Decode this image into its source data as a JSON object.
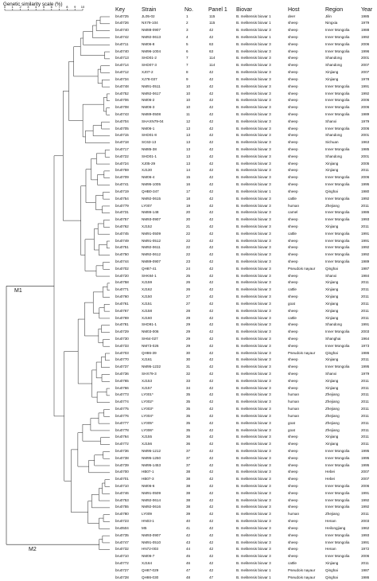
{
  "scale": {
    "title": "Genetic similarity scale (%)",
    "ticks": [
      "0",
      "1",
      "2",
      "3",
      "4",
      "5",
      "6",
      "7",
      "8",
      "9",
      "10"
    ]
  },
  "columns": {
    "key": "Key",
    "strain": "Strain",
    "no": "No.",
    "panel": "Panel 1",
    "biovar": "Biovar",
    "host": "Host",
    "region": "Region",
    "year": "Year"
  },
  "clusters": [
    {
      "label": "M1",
      "first_row": 0,
      "last_row": 73
    },
    {
      "label": "M2",
      "first_row": 74,
      "last_row": 76
    }
  ],
  "rows": [
    [
      "bru0725",
      "JL05-02",
      "1",
      "115",
      "B. melitensis biovar 1",
      "deer",
      "Jilin",
      "1985"
    ],
    [
      "bru0726",
      "NX79-104",
      "2",
      "115",
      "B. melitensis biovar 1",
      "sheep",
      "Ningxia",
      "1979"
    ],
    [
      "bru0740",
      "NM88-0907",
      "3",
      "42",
      "B. melitensis biovar 3",
      "sheep",
      "Inner Mongolia",
      "1988"
    ],
    [
      "bru0742",
      "NM92-0613",
      "4",
      "42",
      "B. melitensis biovar 1",
      "sheep",
      "Inner Mongolia",
      "1992"
    ],
    [
      "bru0711",
      "NM06-8",
      "5",
      "63",
      "B. melitensis biovar 3",
      "sheep",
      "Inner Mongolia",
      "2006"
    ],
    [
      "bru0740",
      "NM96-1004",
      "6",
      "63",
      "B. melitensis biovar 3",
      "sheep",
      "Inner Mongolia",
      "1996"
    ],
    [
      "bru0713",
      "SHD01-2",
      "7",
      "114",
      "B. melitensis biovar 3",
      "sheep",
      "Shandong",
      "2001"
    ],
    [
      "bru0714",
      "SHD07-3",
      "7",
      "114",
      "B. melitensis biovar 3",
      "sheep",
      "Shandong",
      "2007"
    ],
    [
      "bru0712",
      "XJ07-2",
      "8",
      "42",
      "B. melitensis biovar 3",
      "sheep",
      "Xinjiang",
      "2007"
    ],
    [
      "bru0734",
      "XJ78-037",
      "9",
      "42",
      "B. melitensis biovar 3",
      "sheep",
      "Xinjiang",
      "1978"
    ],
    [
      "bru0748",
      "NM91-0511",
      "10",
      "42",
      "B. melitensis biovar 3",
      "sheep",
      "Inner Mongolia",
      "1991"
    ],
    [
      "bru0752",
      "NM92-0617",
      "10",
      "42",
      "B. melitensis biovar 3",
      "sheep",
      "Inner Mongolia",
      "1992"
    ],
    [
      "bru0706",
      "NM06-2",
      "10",
      "42",
      "B. melitensis biovar 3",
      "sheep",
      "Inner Mongolia",
      "2006"
    ],
    [
      "bru0708",
      "NM06-3",
      "10",
      "42",
      "B. melitensis biovar 3",
      "sheep",
      "Inner Mongolia",
      "2006"
    ],
    [
      "bru0743",
      "NM89-0508",
      "11",
      "42",
      "B. melitensis biovar 3",
      "sheep",
      "Inner Mongolia",
      "1989"
    ],
    [
      "bru0704",
      "SHAXN79-04",
      "12",
      "42",
      "B. melitensis biovar 3",
      "sheep",
      "Shanxi",
      "1979"
    ],
    [
      "bru0705",
      "NM06-1",
      "13",
      "42",
      "B. melitensis biovar 3",
      "sheep",
      "Inner Mongolia",
      "2006"
    ],
    [
      "bru0715",
      "SHD01-8",
      "13",
      "42",
      "B. melitensis biovar 3",
      "sheep",
      "Shandong",
      "2001"
    ],
    [
      "bru0718",
      "SC63-13",
      "13",
      "42",
      "B. melitensis biovar 3",
      "sheep",
      "Sichuan",
      "1963"
    ],
    [
      "bru0717",
      "NM85-38",
      "13",
      "42",
      "B. melitensis biovar 3",
      "sheep",
      "Inner Mongolia",
      "1985"
    ],
    [
      "bru0722",
      "SHD01-1",
      "13",
      "42",
      "B. melitensis biovar 3",
      "sheep",
      "Shandong",
      "2001"
    ],
    [
      "bru0724",
      "XJ05-29",
      "13",
      "42",
      "B. melitensis biovar 3",
      "sheep",
      "Xinjiang",
      "2005"
    ],
    [
      "bru0759",
      "XJ130",
      "14",
      "42",
      "B. melitensis biovar 3",
      "sheep",
      "Xinjiang",
      "2011"
    ],
    [
      "bru0709",
      "NM06-4",
      "15",
      "42",
      "B. melitensis biovar 3",
      "sheep",
      "Inner Mongolia",
      "2006"
    ],
    [
      "bru0741",
      "NM95-1005",
      "16",
      "42",
      "B. melitensis biovar 3",
      "sheep",
      "Inner Mongolia",
      "1995"
    ],
    [
      "bru0719",
      "QHB0-347",
      "17",
      "42",
      "B. melitensis biovar 1",
      "sheep",
      "Qinghai",
      "1980"
    ],
    [
      "bru0754",
      "NM92-0615",
      "18",
      "42",
      "B. melitensis biovar 3",
      "cattle",
      "Inner Mongolia",
      "1992"
    ],
    [
      "bru0779",
      "LY007",
      "19",
      "42",
      "B. melitensis biovar 3",
      "human",
      "Zhejiang",
      "2011"
    ],
    [
      "bru0731",
      "NM86-148",
      "20",
      "42",
      "B. melitensis biovar 3",
      "camel",
      "Inner Mongolia",
      "1986"
    ],
    [
      "bru0757",
      "NM93-0907",
      "20",
      "42",
      "B. melitensis biovar 3",
      "sheep",
      "Inner Mongolia",
      "1993"
    ],
    [
      "bru0762",
      "XJ152",
      "21",
      "42",
      "B. melitensis biovar 3",
      "sheep",
      "Xinjiang",
      "2011"
    ],
    [
      "bru0745",
      "NM91-0509",
      "22",
      "42",
      "B. melitensis biovar 3",
      "cattle",
      "Inner Mongolia",
      "1991"
    ],
    [
      "bru0749",
      "NM91-0512",
      "22",
      "42",
      "B. melitensis biovar 3",
      "sheep",
      "Inner Mongolia",
      "1991"
    ],
    [
      "bru0751",
      "NM92-0611",
      "22",
      "42",
      "B. melitensis biovar 3",
      "sheep",
      "Inner Mongolia",
      "1992"
    ],
    [
      "bru0750",
      "NM92-0612",
      "22",
      "42",
      "B. melitensis biovar 3",
      "sheep",
      "Inner Mongolia",
      "1992"
    ],
    [
      "bru0744",
      "NM89-0907",
      "23",
      "42",
      "B. melitensis biovar 3",
      "sheep",
      "Inner Mongolia",
      "1989"
    ],
    [
      "bru0702",
      "QH87-41",
      "24",
      "42",
      "B. melitensis biovar 3",
      "Pseudois nayaur",
      "Qinghai",
      "1987"
    ],
    [
      "bru0720",
      "SHK84-1",
      "25",
      "42",
      "B. melitensis biovar 3",
      "sheep",
      "Shanxi",
      "1984"
    ],
    [
      "bru0758",
      "XJ159",
      "26",
      "42",
      "B. melitensis biovar 3",
      "sheep",
      "Xinjiang",
      "2011"
    ],
    [
      "bru0771",
      "XJ162",
      "26",
      "42",
      "B. melitensis biovar 3",
      "cattle",
      "Xinjiang",
      "2011"
    ],
    [
      "bru0760",
      "XJ150",
      "27",
      "42",
      "B. melitensis biovar 3",
      "sheep",
      "Xinjiang",
      "2011"
    ],
    [
      "bru0761",
      "XJ151",
      "27",
      "42",
      "B. melitensis biovar 3",
      "goat",
      "Xinjiang",
      "2011"
    ],
    [
      "bru0767",
      "XJ158",
      "28",
      "42",
      "B. melitensis biovar 3",
      "sheep",
      "Xinjiang",
      "2011"
    ],
    [
      "bru0769",
      "XJ160",
      "29",
      "42",
      "B. melitensis biovar 3",
      "cattle",
      "Xinjiang",
      "2011"
    ],
    [
      "bru0781",
      "SHD91-1",
      "29",
      "42",
      "B. melitensis biovar 3",
      "sheep",
      "Shandong",
      "1991"
    ],
    [
      "bru0729",
      "NM03-006",
      "29",
      "42",
      "B. melitensis biovar 3",
      "sheep",
      "Inner Mongolia",
      "2003"
    ],
    [
      "bru0730",
      "SH64-027",
      "29",
      "42",
      "B. melitensis biovar 3",
      "sheep",
      "Shanghai",
      "1964"
    ],
    [
      "bru0733",
      "NM73-026",
      "29",
      "42",
      "B. melitensis biovar 3",
      "sheep",
      "Inner Mongolia",
      "1973"
    ],
    [
      "bru0703",
      "QH86-39",
      "30",
      "42",
      "B. melitensis biovar 3",
      "Pseudois nayaur",
      "Qinghai",
      "1986"
    ],
    [
      "bru0770",
      "XJ161",
      "30",
      "42",
      "B. melitensis biovar 3",
      "sheep",
      "Xinjiang",
      "2011"
    ],
    [
      "bru0737",
      "NM95-1232",
      "31",
      "42",
      "B. melitensis biovar 3",
      "sheep",
      "Inner Mongolia",
      "1995"
    ],
    [
      "bru0736",
      "SHX79-3",
      "32",
      "42",
      "B. melitensis biovar 3",
      "sheep",
      "Shanxi",
      "1979"
    ],
    [
      "bru0765",
      "XJ153",
      "33",
      "42",
      "B. melitensis biovar 3",
      "sheep",
      "Xinjiang",
      "2011"
    ],
    [
      "bru0766",
      "XJ157",
      "34",
      "42",
      "B. melitensis biovar 3",
      "sheep",
      "Xinjiang",
      "2011"
    ],
    [
      "bru0773",
      "LY001*",
      "35",
      "42",
      "B. melitensis biovar 3",
      "human",
      "Zhejiang",
      "2011"
    ],
    [
      "bru0774",
      "LY002*",
      "35",
      "42",
      "B. melitensis biovar 3",
      "human",
      "Zhejiang",
      "2011"
    ],
    [
      "bru0775",
      "LY003*",
      "35",
      "42",
      "B. melitensis biovar 3",
      "human",
      "Zhejiang",
      "2011"
    ],
    [
      "bru0776",
      "LY004*",
      "35",
      "42",
      "B. melitensis biovar 3",
      "human",
      "Zhejiang",
      "2011"
    ],
    [
      "bru0777",
      "LY005*",
      "35",
      "42",
      "B. melitensis biovar 3",
      "goat",
      "Zhejiang",
      "2011"
    ],
    [
      "bru0778",
      "LY006*",
      "35",
      "42",
      "B. melitensis biovar 3",
      "goat",
      "Zhejiang",
      "2011"
    ],
    [
      "bru0764",
      "XJ155",
      "36",
      "42",
      "B. melitensis biovar 3",
      "sheep",
      "Xinjiang",
      "2011"
    ],
    [
      "bru0772",
      "XJ156",
      "36",
      "42",
      "B. melitensis biovar 3",
      "sheep",
      "Xinjiang",
      "2011"
    ],
    [
      "bru0736",
      "NM95-1212",
      "37",
      "42",
      "B. melitensis biovar 3",
      "sheep",
      "Inner Mongolia",
      "1995"
    ],
    [
      "bru0738",
      "NM95-1250",
      "37",
      "42",
      "B. melitensis biovar 3",
      "sheep",
      "Inner Mongolia",
      "1995"
    ],
    [
      "bru0739",
      "NM95-1453",
      "37",
      "42",
      "B. melitensis biovar 3",
      "sheep",
      "Inner Mongolia",
      "1995"
    ],
    [
      "bru0700",
      "HB07-1",
      "38",
      "42",
      "B. melitensis biovar 3",
      "sheep",
      "Hebei",
      "2007"
    ],
    [
      "bru0701",
      "HB07-3",
      "38",
      "42",
      "B. melitensis biovar 3",
      "sheep",
      "Hebei",
      "2007"
    ],
    [
      "bru0710",
      "NM06-6",
      "38",
      "42",
      "B. melitensis biovar 3",
      "sheep",
      "Inner Mongolia",
      "2006"
    ],
    [
      "bru0746",
      "NM91-0509",
      "38",
      "42",
      "B. melitensis biovar 3",
      "sheep",
      "Inner Mongolia",
      "1991"
    ],
    [
      "bru0753",
      "NM92-0614",
      "38",
      "42",
      "B. melitensis biovar 3",
      "sheep",
      "Inner Mongolia",
      "1992"
    ],
    [
      "bru0755",
      "NM92-0616",
      "38",
      "42",
      "B. melitensis biovar 3",
      "sheep",
      "Inner Mongolia",
      "1992"
    ],
    [
      "bru0780",
      "LY009",
      "39",
      "42",
      "B. melitensis biovar 3",
      "human",
      "Zhejiang",
      "2011"
    ],
    [
      "bru0723",
      "HN03-1",
      "40",
      "42",
      "B. melitensis biovar 3",
      "sheep",
      "Henan",
      "2003"
    ],
    [
      "bru0504",
      "M5",
      "41",
      "42",
      "B. melitensis biovar 3",
      "sheep",
      "Heilongjiang",
      "1962"
    ],
    [
      "bru0735",
      "NM93-0907",
      "42",
      "42",
      "B. melitensis biovar 3",
      "sheep",
      "Inner Mongolia",
      "1993"
    ],
    [
      "bru0747",
      "NM91-0510",
      "43",
      "42",
      "B. melitensis biovar 3",
      "sheep",
      "Inner Mongolia",
      "1991"
    ],
    [
      "bru0732",
      "HN72-003",
      "44",
      "42",
      "B. melitensis biovar 3",
      "sheep",
      "Henan",
      "1972"
    ],
    [
      "bru0710",
      "NM06-7",
      "45",
      "42",
      "B. melitensis biovar 3",
      "sheep",
      "Inner Mongolia",
      "2006"
    ],
    [
      "bru0772",
      "XJ164",
      "46",
      "42",
      "B. melitensis biovar 3",
      "cattle",
      "Xinjiang",
      "2011"
    ],
    [
      "bru0727",
      "QH87-029",
      "47",
      "42",
      "B. melitensis biovar 1",
      "Pseudois nayaur",
      "Qinghai",
      "1987"
    ],
    [
      "bru0728",
      "QH86-030",
      "48",
      "47",
      "B. melitensis biovar 1",
      "Pseudois nayaur",
      "Qinghai",
      "1986"
    ]
  ]
}
